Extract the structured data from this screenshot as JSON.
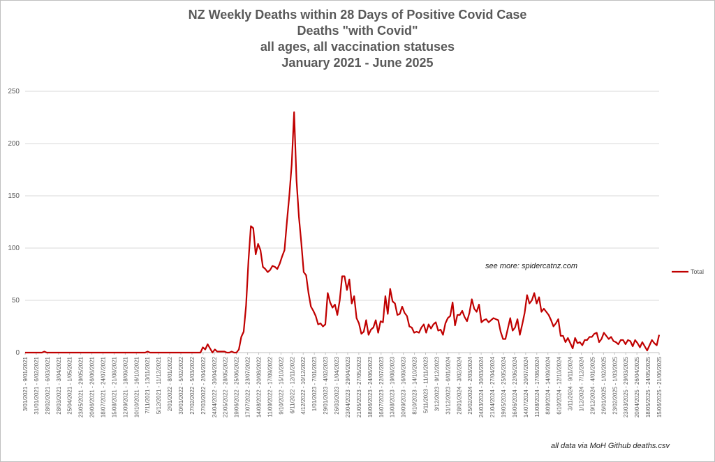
{
  "chart_data": {
    "type": "line",
    "title_lines": [
      "NZ Weekly Deaths within 28 Days of Positive Covid Case",
      "Deaths \"with Covid\"",
      "all ages, all vaccination statuses",
      "January 2021 - June 2025"
    ],
    "y_ticks": [
      0,
      50,
      100,
      150,
      200,
      250
    ],
    "ylim": [
      0,
      250
    ],
    "grid": true,
    "legend_position": "right",
    "annotation": "see more: spidercatnz.com",
    "source_note": "all data via MoH Github deaths.csv",
    "x_tick_labels": [
      "3/01/2021 - 9/01/2021",
      "31/01/2021 - 6/02/2021",
      "28/02/2021 - 6/03/2021",
      "28/03/2021 - 3/04/2021",
      "25/04/2021 - 1/05/2021",
      "23/05/2021 - 29/05/2021",
      "20/06/2021 - 26/06/2021",
      "18/07/2021 - 24/07/2021",
      "15/08/2021 - 21/08/2021",
      "12/09/2021 - 18/09/2021",
      "10/10/2021 - 16/10/2021",
      "7/11/2021 - 13/11/2021",
      "5/12/2021 - 11/12/2021",
      "2/01/2022 - 8/01/2022",
      "30/01/2022 - 5/02/2022",
      "27/02/2022 - 5/03/2022",
      "27/03/2022 - 2/04/2022",
      "24/04/2022 - 30/04/2022",
      "22/05/2022 - 28/05/2022",
      "19/06/2022 - 25/06/2022",
      "17/07/2022 - 23/07/2022",
      "14/08/2022 - 20/08/2022",
      "11/09/2022 - 17/09/2022",
      "9/10/2022 - 15/10/2022",
      "6/11/2022 - 12/11/2022",
      "4/12/2022 - 10/12/2022",
      "1/01/2023 - 7/01/2023",
      "29/01/2023 - 4/02/2023",
      "26/03/2023 - 1/04/2023",
      "23/04/2023 - 29/04/2023",
      "21/05/2023 - 27/05/2023",
      "18/06/2023 - 24/06/2023",
      "16/07/2023 - 22/07/2023",
      "13/08/2023 - 19/08/2023",
      "10/09/2023 - 16/09/2023",
      "8/10/2023 - 14/10/2023",
      "5/11/2023 - 11/11/2023",
      "3/12/2023 - 9/12/2023",
      "31/12/2023 - 6/01/2024",
      "28/01/2024 - 3/02/2024",
      "25/02/2024 - 2/03/2024",
      "24/03/2024 - 30/03/2024",
      "21/04/2024 - 27/04/2024",
      "19/05/2024 - 25/05/2024",
      "16/06/2024 - 22/06/2024",
      "14/07/2024 - 20/07/2024",
      "11/08/2024 - 17/08/2024",
      "8/09/2024 - 14/09/2024",
      "6/10/2024 - 12/10/2024",
      "3/11/2024 - 9/11/2024",
      "1/12/2024 - 7/12/2024",
      "29/12/2024 - 4/01/2025",
      "26/01/2025 - 1/02/2025",
      "23/02/2025 - 1/03/2025",
      "23/03/2025 - 29/03/2025",
      "20/04/2025 - 26/04/2025",
      "18/05/2025 - 24/05/2025",
      "15/06/2025 - 21/06/2025"
    ],
    "series": [
      {
        "name": "Total",
        "color": "#c00000",
        "values": [
          0,
          0,
          0,
          0,
          0,
          0,
          0,
          0,
          1,
          0,
          0,
          0,
          0,
          0,
          0,
          0,
          0,
          0,
          0,
          0,
          0,
          0,
          0,
          0,
          0,
          0,
          0,
          0,
          0,
          0,
          0,
          0,
          0,
          0,
          0,
          0,
          0,
          0,
          0,
          0,
          0,
          0,
          0,
          0,
          0,
          0,
          0,
          0,
          0,
          0,
          0,
          1,
          0,
          0,
          0,
          0,
          0,
          0,
          0,
          0,
          0,
          0,
          0,
          0,
          0,
          0,
          0,
          0,
          0,
          0,
          0,
          0,
          0,
          0,
          5,
          3,
          8,
          4,
          0,
          3,
          1,
          1,
          1,
          1,
          0,
          0,
          1,
          0,
          0,
          3,
          15,
          20,
          45,
          88,
          121,
          119,
          94,
          104,
          98,
          82,
          80,
          77,
          79,
          83,
          82,
          80,
          85,
          92,
          98,
          125,
          150,
          180,
          230,
          165,
          130,
          105,
          77,
          74,
          57,
          44,
          40,
          35,
          27,
          28,
          25,
          27,
          57,
          48,
          43,
          46,
          36,
          50,
          73,
          73,
          60,
          70,
          47,
          54,
          33,
          28,
          18,
          20,
          31,
          17,
          22,
          24,
          31,
          19,
          30,
          29,
          54,
          37,
          61,
          49,
          47,
          36,
          37,
          44,
          38,
          35,
          25,
          24,
          19,
          20,
          19,
          24,
          27,
          19,
          27,
          23,
          27,
          29,
          21,
          22,
          17,
          28,
          33,
          35,
          48,
          26,
          36,
          36,
          40,
          34,
          30,
          38,
          51,
          42,
          39,
          46,
          29,
          31,
          32,
          29,
          31,
          33,
          32,
          31,
          20,
          13,
          13,
          23,
          33,
          21,
          24,
          32,
          17,
          27,
          38,
          55,
          47,
          50,
          57,
          47,
          53,
          39,
          42,
          39,
          36,
          31,
          25,
          28,
          32,
          16,
          16,
          10,
          14,
          9,
          4,
          14,
          9,
          10,
          7,
          12,
          12,
          15,
          15,
          18,
          19,
          10,
          13,
          19,
          16,
          13,
          15,
          11,
          10,
          8,
          12,
          12,
          8,
          12,
          11,
          6,
          12,
          9,
          5,
          10,
          6,
          2,
          7,
          12,
          9,
          7,
          17
        ]
      }
    ]
  }
}
